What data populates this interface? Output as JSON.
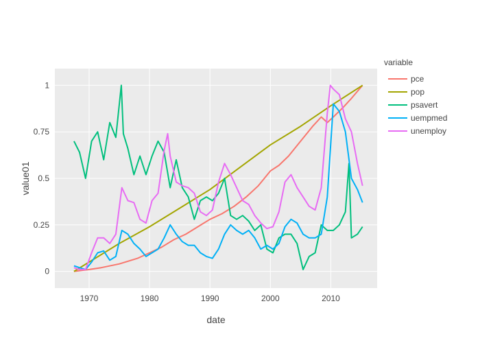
{
  "chart_data": {
    "type": "line",
    "title": "",
    "xlabel": "date",
    "ylabel": "value01",
    "x_is_date": true,
    "xlim": [
      "1964-05-01",
      "2017-09-01"
    ],
    "ylim": [
      -0.09,
      1.09
    ],
    "x_ticks": [
      {
        "date": "1970-01-01",
        "label": "1970"
      },
      {
        "date": "1980-01-01",
        "label": "1980"
      },
      {
        "date": "1990-01-01",
        "label": "1990"
      },
      {
        "date": "2000-01-01",
        "label": "2000"
      },
      {
        "date": "2010-01-01",
        "label": "2010"
      }
    ],
    "y_ticks": [
      {
        "value": 0,
        "label": "0"
      },
      {
        "value": 0.25,
        "label": "0.25"
      },
      {
        "value": 0.5,
        "label": "0.5"
      },
      {
        "value": 0.75,
        "label": "0.75"
      },
      {
        "value": 1,
        "label": "1"
      }
    ],
    "grid": true,
    "legend": {
      "title": "variable",
      "placement": "right"
    },
    "series": [
      {
        "name": "pce",
        "color": "#F8766D",
        "points": [
          [
            "1967-07-01",
            0.0
          ],
          [
            "1970-01-01",
            0.01
          ],
          [
            "1972-01-01",
            0.02
          ],
          [
            "1975-01-01",
            0.04
          ],
          [
            "1978-01-01",
            0.07
          ],
          [
            "1980-01-01",
            0.1
          ],
          [
            "1982-01-01",
            0.13
          ],
          [
            "1984-01-01",
            0.17
          ],
          [
            "1986-01-01",
            0.2
          ],
          [
            "1988-01-01",
            0.24
          ],
          [
            "1990-01-01",
            0.28
          ],
          [
            "1992-01-01",
            0.31
          ],
          [
            "1994-01-01",
            0.35
          ],
          [
            "1996-01-01",
            0.4
          ],
          [
            "1998-01-01",
            0.46
          ],
          [
            "2000-01-01",
            0.54
          ],
          [
            "2001-06-01",
            0.57
          ],
          [
            "2003-01-01",
            0.62
          ],
          [
            "2005-01-01",
            0.7
          ],
          [
            "2007-01-01",
            0.78
          ],
          [
            "2008-06-01",
            0.83
          ],
          [
            "2009-06-01",
            0.8
          ],
          [
            "2010-06-01",
            0.83
          ],
          [
            "2012-01-01",
            0.88
          ],
          [
            "2013-06-01",
            0.93
          ],
          [
            "2015-04-01",
            1.0
          ]
        ]
      },
      {
        "name": "pop",
        "color": "#A3A500",
        "points": [
          [
            "1967-07-01",
            0.0
          ],
          [
            "1970-01-01",
            0.05
          ],
          [
            "1975-01-01",
            0.15
          ],
          [
            "1980-01-01",
            0.24
          ],
          [
            "1985-01-01",
            0.34
          ],
          [
            "1990-01-01",
            0.44
          ],
          [
            "1995-01-01",
            0.56
          ],
          [
            "2000-01-01",
            0.68
          ],
          [
            "2005-01-01",
            0.78
          ],
          [
            "2010-01-01",
            0.89
          ],
          [
            "2015-04-01",
            1.0
          ]
        ]
      },
      {
        "name": "psavert",
        "color": "#00BF7D",
        "points": [
          [
            "1967-07-01",
            0.7
          ],
          [
            "1968-06-01",
            0.64
          ],
          [
            "1969-06-01",
            0.5
          ],
          [
            "1970-06-01",
            0.7
          ],
          [
            "1971-06-01",
            0.75
          ],
          [
            "1972-06-01",
            0.6
          ],
          [
            "1973-06-01",
            0.8
          ],
          [
            "1974-06-01",
            0.72
          ],
          [
            "1975-05-01",
            1.0
          ],
          [
            "1975-09-01",
            0.74
          ],
          [
            "1976-06-01",
            0.66
          ],
          [
            "1977-06-01",
            0.52
          ],
          [
            "1978-06-01",
            0.62
          ],
          [
            "1979-06-01",
            0.52
          ],
          [
            "1980-06-01",
            0.62
          ],
          [
            "1981-06-01",
            0.7
          ],
          [
            "1982-06-01",
            0.64
          ],
          [
            "1983-06-01",
            0.45
          ],
          [
            "1984-06-01",
            0.6
          ],
          [
            "1985-06-01",
            0.45
          ],
          [
            "1986-06-01",
            0.4
          ],
          [
            "1987-06-01",
            0.28
          ],
          [
            "1988-06-01",
            0.38
          ],
          [
            "1989-06-01",
            0.4
          ],
          [
            "1990-06-01",
            0.38
          ],
          [
            "1991-06-01",
            0.42
          ],
          [
            "1992-06-01",
            0.5
          ],
          [
            "1993-06-01",
            0.3
          ],
          [
            "1994-06-01",
            0.28
          ],
          [
            "1995-06-01",
            0.3
          ],
          [
            "1996-06-01",
            0.27
          ],
          [
            "1997-06-01",
            0.22
          ],
          [
            "1998-06-01",
            0.25
          ],
          [
            "1999-06-01",
            0.12
          ],
          [
            "2000-06-01",
            0.1
          ],
          [
            "2001-06-01",
            0.18
          ],
          [
            "2002-06-01",
            0.2
          ],
          [
            "2003-06-01",
            0.2
          ],
          [
            "2004-06-01",
            0.15
          ],
          [
            "2005-06-01",
            0.01
          ],
          [
            "2006-06-01",
            0.08
          ],
          [
            "2007-06-01",
            0.1
          ],
          [
            "2008-06-01",
            0.25
          ],
          [
            "2009-06-01",
            0.22
          ],
          [
            "2010-06-01",
            0.22
          ],
          [
            "2011-06-01",
            0.25
          ],
          [
            "2012-06-01",
            0.32
          ],
          [
            "2013-01-01",
            0.58
          ],
          [
            "2013-06-01",
            0.18
          ],
          [
            "2014-06-01",
            0.2
          ],
          [
            "2015-04-01",
            0.24
          ]
        ]
      },
      {
        "name": "uempmed",
        "color": "#00B0F6",
        "points": [
          [
            "1967-07-01",
            0.03
          ],
          [
            "1968-06-01",
            0.02
          ],
          [
            "1969-06-01",
            0.01
          ],
          [
            "1970-06-01",
            0.05
          ],
          [
            "1971-06-01",
            0.1
          ],
          [
            "1972-06-01",
            0.11
          ],
          [
            "1973-06-01",
            0.06
          ],
          [
            "1974-06-01",
            0.08
          ],
          [
            "1975-06-01",
            0.22
          ],
          [
            "1976-06-01",
            0.2
          ],
          [
            "1977-06-01",
            0.15
          ],
          [
            "1978-06-01",
            0.12
          ],
          [
            "1979-06-01",
            0.08
          ],
          [
            "1980-06-01",
            0.1
          ],
          [
            "1981-06-01",
            0.12
          ],
          [
            "1982-06-01",
            0.18
          ],
          [
            "1983-06-01",
            0.25
          ],
          [
            "1984-06-01",
            0.2
          ],
          [
            "1985-06-01",
            0.16
          ],
          [
            "1986-06-01",
            0.14
          ],
          [
            "1987-06-01",
            0.14
          ],
          [
            "1988-06-01",
            0.1
          ],
          [
            "1989-06-01",
            0.08
          ],
          [
            "1990-06-01",
            0.07
          ],
          [
            "1991-06-01",
            0.12
          ],
          [
            "1992-06-01",
            0.2
          ],
          [
            "1993-06-01",
            0.25
          ],
          [
            "1994-06-01",
            0.22
          ],
          [
            "1995-06-01",
            0.2
          ],
          [
            "1996-06-01",
            0.22
          ],
          [
            "1997-06-01",
            0.18
          ],
          [
            "1998-06-01",
            0.12
          ],
          [
            "1999-06-01",
            0.14
          ],
          [
            "2000-06-01",
            0.12
          ],
          [
            "2001-06-01",
            0.15
          ],
          [
            "2002-06-01",
            0.24
          ],
          [
            "2003-06-01",
            0.28
          ],
          [
            "2004-06-01",
            0.26
          ],
          [
            "2005-06-01",
            0.2
          ],
          [
            "2006-06-01",
            0.18
          ],
          [
            "2007-06-01",
            0.18
          ],
          [
            "2008-06-01",
            0.2
          ],
          [
            "2009-06-01",
            0.4
          ],
          [
            "2010-06-01",
            0.9
          ],
          [
            "2011-06-01",
            0.86
          ],
          [
            "2012-06-01",
            0.75
          ],
          [
            "2013-06-01",
            0.5
          ],
          [
            "2014-06-01",
            0.44
          ],
          [
            "2015-04-01",
            0.37
          ]
        ]
      },
      {
        "name": "unemploy",
        "color": "#E76BF3",
        "points": [
          [
            "1967-07-01",
            0.02
          ],
          [
            "1968-06-01",
            0.01
          ],
          [
            "1969-06-01",
            0.01
          ],
          [
            "1970-06-01",
            0.1
          ],
          [
            "1971-06-01",
            0.18
          ],
          [
            "1972-06-01",
            0.18
          ],
          [
            "1973-06-01",
            0.15
          ],
          [
            "1974-06-01",
            0.2
          ],
          [
            "1975-06-01",
            0.45
          ],
          [
            "1976-06-01",
            0.38
          ],
          [
            "1977-06-01",
            0.37
          ],
          [
            "1978-06-01",
            0.28
          ],
          [
            "1979-06-01",
            0.26
          ],
          [
            "1980-06-01",
            0.38
          ],
          [
            "1981-06-01",
            0.42
          ],
          [
            "1982-06-01",
            0.65
          ],
          [
            "1983-01-01",
            0.74
          ],
          [
            "1983-06-01",
            0.62
          ],
          [
            "1984-06-01",
            0.48
          ],
          [
            "1985-06-01",
            0.46
          ],
          [
            "1986-06-01",
            0.45
          ],
          [
            "1987-06-01",
            0.42
          ],
          [
            "1988-06-01",
            0.32
          ],
          [
            "1989-06-01",
            0.3
          ],
          [
            "1990-06-01",
            0.33
          ],
          [
            "1991-06-01",
            0.48
          ],
          [
            "1992-06-01",
            0.58
          ],
          [
            "1993-06-01",
            0.52
          ],
          [
            "1994-06-01",
            0.45
          ],
          [
            "1995-06-01",
            0.38
          ],
          [
            "1996-06-01",
            0.36
          ],
          [
            "1997-06-01",
            0.3
          ],
          [
            "1998-06-01",
            0.26
          ],
          [
            "1999-06-01",
            0.23
          ],
          [
            "2000-06-01",
            0.24
          ],
          [
            "2001-06-01",
            0.32
          ],
          [
            "2002-06-01",
            0.48
          ],
          [
            "2003-06-01",
            0.52
          ],
          [
            "2004-06-01",
            0.45
          ],
          [
            "2005-06-01",
            0.4
          ],
          [
            "2006-06-01",
            0.35
          ],
          [
            "2007-06-01",
            0.33
          ],
          [
            "2008-06-01",
            0.45
          ],
          [
            "2009-06-01",
            0.85
          ],
          [
            "2009-12-01",
            1.0
          ],
          [
            "2010-06-01",
            0.98
          ],
          [
            "2011-06-01",
            0.95
          ],
          [
            "2012-06-01",
            0.82
          ],
          [
            "2013-06-01",
            0.75
          ],
          [
            "2014-06-01",
            0.58
          ],
          [
            "2015-04-01",
            0.46
          ]
        ]
      }
    ]
  }
}
